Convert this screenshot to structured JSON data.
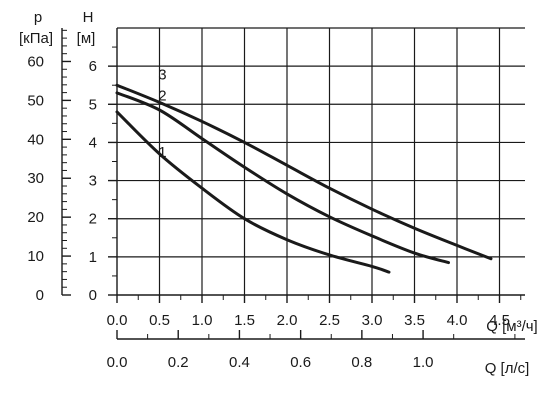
{
  "chart_data": {
    "type": "line",
    "x_axis": {
      "label": "Q [м³/ч]",
      "ticks": [
        "0.0",
        "0.5",
        "1.0",
        "1.5",
        "2.0",
        "2.5",
        "3.0",
        "3.5",
        "4.0",
        "4.5"
      ],
      "range": [
        0,
        4.8
      ]
    },
    "x2_axis": {
      "label": "Q [л/с]",
      "ticks": [
        "0.0",
        "0.2",
        "0.4",
        "0.6",
        "0.8",
        "1.0"
      ],
      "range": [
        0,
        1.333
      ]
    },
    "y_axis": {
      "label_symbol": "H",
      "label_unit": "[м]",
      "ticks": [
        "0",
        "1",
        "2",
        "3",
        "4",
        "5",
        "6"
      ],
      "range": [
        0,
        7
      ]
    },
    "y2_axis": {
      "label_symbol": "p",
      "label_unit": "[кПа]",
      "ticks": [
        "0",
        "10",
        "20",
        "30",
        "40",
        "50",
        "60"
      ],
      "range": [
        0,
        68.6
      ]
    },
    "grid": true,
    "series": [
      {
        "name": "1",
        "x": [
          0.0,
          0.5,
          1.0,
          1.5,
          2.0,
          2.5,
          3.0,
          3.2
        ],
        "y": [
          4.8,
          3.7,
          2.8,
          2.0,
          1.45,
          1.05,
          0.75,
          0.6
        ]
      },
      {
        "name": "2",
        "x": [
          0.0,
          0.5,
          1.0,
          1.5,
          2.0,
          2.5,
          3.0,
          3.5,
          3.9
        ],
        "y": [
          5.3,
          4.85,
          4.1,
          3.35,
          2.65,
          2.05,
          1.55,
          1.1,
          0.85
        ]
      },
      {
        "name": "3",
        "x": [
          0.0,
          0.5,
          1.0,
          1.5,
          2.0,
          2.5,
          3.0,
          3.5,
          4.0,
          4.4
        ],
        "y": [
          5.5,
          5.05,
          4.55,
          4.0,
          3.4,
          2.8,
          2.25,
          1.75,
          1.3,
          0.95
        ]
      }
    ]
  }
}
